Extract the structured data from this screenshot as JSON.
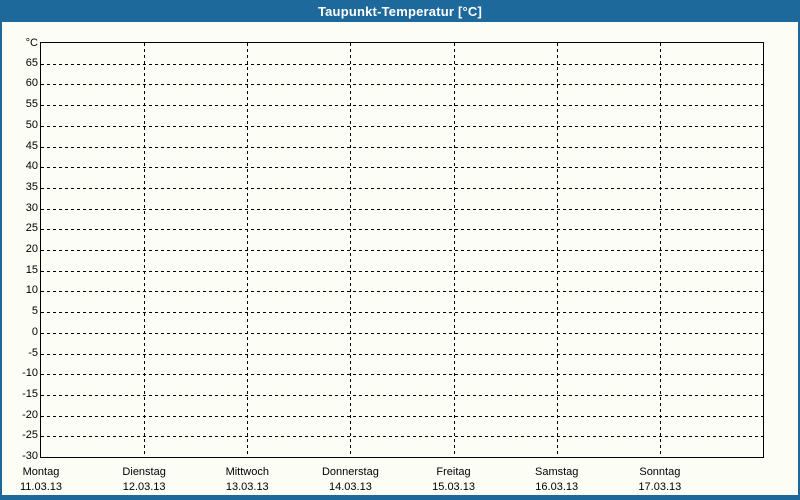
{
  "window": {
    "title": "Taupunkt-Temperatur [°C]"
  },
  "chart_data": {
    "type": "line",
    "title": "Taupunkt-Temperatur [°C]",
    "xlabel": "",
    "ylabel": "°C",
    "ylim": [
      -30,
      70
    ],
    "ytick_step": 5,
    "ytick_labels": [
      65,
      60,
      55,
      50,
      45,
      40,
      35,
      30,
      25,
      20,
      15,
      10,
      5,
      0,
      -5,
      -10,
      -15,
      -20,
      -25,
      -30
    ],
    "x_categories": [
      {
        "day": "Montag",
        "date": "11.03.13"
      },
      {
        "day": "Dienstag",
        "date": "12.03.13"
      },
      {
        "day": "Mittwoch",
        "date": "13.03.13"
      },
      {
        "day": "Donnerstag",
        "date": "14.03.13"
      },
      {
        "day": "Freitag",
        "date": "15.03.13"
      },
      {
        "day": "Samstag",
        "date": "16.03.13"
      },
      {
        "day": "Sonntag",
        "date": "17.03.13"
      }
    ],
    "series": [],
    "grid": true,
    "grid_style": "dashed",
    "legend": false
  },
  "colors": {
    "titlebar": "#1e699c",
    "titlebar_text": "#ffffff",
    "window_border": "#1e699c",
    "background": "#fcfdf5",
    "axis": "#000000",
    "gridline": "#000000",
    "label_text": "#000000"
  }
}
